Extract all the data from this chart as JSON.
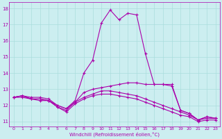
{
  "xlabel": "Windchill (Refroidissement éolien,°C)",
  "bg_color": "#cceef0",
  "line_color": "#aa00aa",
  "grid_color": "#aadddd",
  "ylim": [
    10.7,
    18.4
  ],
  "xlim": [
    -0.5,
    23.5
  ],
  "yticks": [
    11,
    12,
    13,
    14,
    15,
    16,
    17,
    18
  ],
  "xticks": [
    0,
    1,
    2,
    3,
    4,
    5,
    6,
    7,
    8,
    9,
    10,
    11,
    12,
    13,
    14,
    15,
    16,
    17,
    18,
    19,
    20,
    21,
    22,
    23
  ],
  "series": [
    {
      "x": [
        0,
        1,
        2,
        3,
        4,
        5,
        6,
        7,
        8,
        9,
        10,
        11,
        12,
        13,
        14,
        15,
        16,
        17,
        18,
        19,
        20,
        21,
        22,
        23
      ],
      "y": [
        12.5,
        12.6,
        12.5,
        12.5,
        12.4,
        12.0,
        11.8,
        12.3,
        14.0,
        14.8,
        17.1,
        17.9,
        17.3,
        17.7,
        17.6,
        15.2,
        13.3,
        13.3,
        13.3,
        11.7,
        11.5,
        11.1,
        11.3,
        11.2
      ]
    },
    {
      "x": [
        0,
        1,
        2,
        3,
        4,
        5,
        6,
        7,
        8,
        9,
        10,
        11,
        12,
        13,
        14,
        15,
        16,
        17,
        18,
        19,
        20,
        21,
        22,
        23
      ],
      "y": [
        12.5,
        12.6,
        12.4,
        12.4,
        12.3,
        12.0,
        11.8,
        12.2,
        12.8,
        13.0,
        13.1,
        13.2,
        13.3,
        13.4,
        13.4,
        13.3,
        13.3,
        13.3,
        13.2,
        11.7,
        11.5,
        11.1,
        11.3,
        11.2
      ]
    },
    {
      "x": [
        0,
        1,
        2,
        3,
        4,
        5,
        6,
        7,
        8,
        9,
        10,
        11,
        12,
        13,
        14,
        15,
        16,
        17,
        18,
        19,
        20,
        21,
        22,
        23
      ],
      "y": [
        12.5,
        12.6,
        12.4,
        12.4,
        12.3,
        11.9,
        11.7,
        12.2,
        12.5,
        12.7,
        12.9,
        12.9,
        12.8,
        12.7,
        12.6,
        12.4,
        12.2,
        12.0,
        11.8,
        11.6,
        11.4,
        11.1,
        11.2,
        11.2
      ]
    },
    {
      "x": [
        0,
        1,
        2,
        3,
        4,
        5,
        6,
        7,
        8,
        9,
        10,
        11,
        12,
        13,
        14,
        15,
        16,
        17,
        18,
        19,
        20,
        21,
        22,
        23
      ],
      "y": [
        12.5,
        12.5,
        12.4,
        12.3,
        12.3,
        11.9,
        11.6,
        12.1,
        12.4,
        12.6,
        12.7,
        12.7,
        12.6,
        12.5,
        12.4,
        12.2,
        12.0,
        11.8,
        11.6,
        11.4,
        11.3,
        11.0,
        11.1,
        11.1
      ]
    }
  ]
}
